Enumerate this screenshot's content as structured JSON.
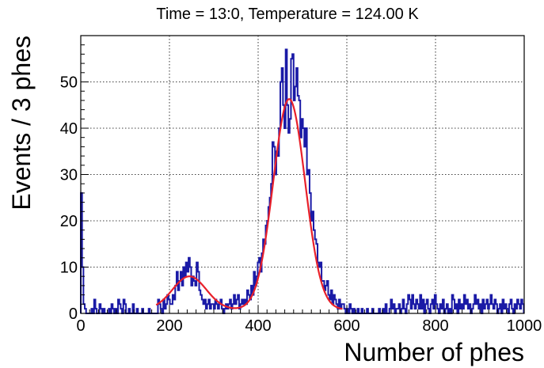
{
  "chart_data": {
    "type": "histogram",
    "title": "Time = 13:0, Temperature = 124.00 K",
    "xlabel": "Number of phes",
    "ylabel": "Events / 3 phes",
    "xlim": [
      0,
      1000
    ],
    "ylim": [
      0,
      60
    ],
    "x_ticks": [
      0,
      200,
      400,
      600,
      800,
      1000
    ],
    "x_tick_labels": [
      "0",
      "200",
      "400",
      "600",
      "800",
      "1000"
    ],
    "y_ticks": [
      0,
      10,
      20,
      30,
      40,
      50
    ],
    "y_tick_labels": [
      "0",
      "10",
      "20",
      "30",
      "40",
      "50"
    ],
    "grid": true,
    "bin_width": 3,
    "histogram": {
      "name": "",
      "color": "#1a1aa6",
      "bins": [
        [
          0,
          26
        ],
        [
          3,
          10
        ],
        [
          6,
          2
        ],
        [
          9,
          1
        ],
        [
          12,
          0
        ],
        [
          15,
          0
        ],
        [
          18,
          0
        ],
        [
          21,
          0
        ],
        [
          24,
          1
        ],
        [
          27,
          0
        ],
        [
          30,
          3
        ],
        [
          33,
          1
        ],
        [
          36,
          0
        ],
        [
          39,
          0
        ],
        [
          42,
          2
        ],
        [
          45,
          1
        ],
        [
          48,
          0
        ],
        [
          51,
          1
        ],
        [
          54,
          0
        ],
        [
          57,
          0
        ],
        [
          60,
          0
        ],
        [
          63,
          1
        ],
        [
          66,
          0
        ],
        [
          69,
          2
        ],
        [
          72,
          1
        ],
        [
          75,
          0
        ],
        [
          78,
          1
        ],
        [
          81,
          0
        ],
        [
          84,
          3
        ],
        [
          87,
          2
        ],
        [
          90,
          1
        ],
        [
          93,
          0
        ],
        [
          96,
          3
        ],
        [
          99,
          2
        ],
        [
          102,
          0
        ],
        [
          105,
          0
        ],
        [
          108,
          1
        ],
        [
          111,
          0
        ],
        [
          114,
          0
        ],
        [
          117,
          2
        ],
        [
          120,
          0
        ],
        [
          123,
          0
        ],
        [
          126,
          1
        ],
        [
          129,
          0
        ],
        [
          132,
          0
        ],
        [
          135,
          0
        ],
        [
          138,
          1
        ],
        [
          141,
          0
        ],
        [
          144,
          0
        ],
        [
          147,
          0
        ],
        [
          150,
          0
        ],
        [
          153,
          1
        ],
        [
          156,
          0
        ],
        [
          159,
          0
        ],
        [
          162,
          0
        ],
        [
          165,
          0
        ],
        [
          168,
          0
        ],
        [
          171,
          0
        ],
        [
          174,
          3
        ],
        [
          177,
          2
        ],
        [
          180,
          1
        ],
        [
          183,
          0
        ],
        [
          186,
          3
        ],
        [
          189,
          1
        ],
        [
          192,
          2
        ],
        [
          195,
          4
        ],
        [
          198,
          3
        ],
        [
          201,
          2
        ],
        [
          204,
          2
        ],
        [
          207,
          4
        ],
        [
          210,
          3
        ],
        [
          213,
          6
        ],
        [
          216,
          9
        ],
        [
          219,
          5
        ],
        [
          222,
          7
        ],
        [
          225,
          9
        ],
        [
          228,
          6
        ],
        [
          231,
          10
        ],
        [
          234,
          8
        ],
        [
          237,
          11
        ],
        [
          240,
          9
        ],
        [
          243,
          12
        ],
        [
          246,
          10
        ],
        [
          249,
          6
        ],
        [
          252,
          8
        ],
        [
          255,
          7
        ],
        [
          258,
          6
        ],
        [
          261,
          11
        ],
        [
          264,
          9
        ],
        [
          267,
          5
        ],
        [
          270,
          4
        ],
        [
          273,
          3
        ],
        [
          276,
          2
        ],
        [
          279,
          3
        ],
        [
          282,
          1
        ],
        [
          285,
          2
        ],
        [
          288,
          3
        ],
        [
          291,
          1
        ],
        [
          294,
          2
        ],
        [
          297,
          2
        ],
        [
          300,
          1
        ],
        [
          303,
          3
        ],
        [
          306,
          2
        ],
        [
          309,
          1
        ],
        [
          312,
          2
        ],
        [
          315,
          3
        ],
        [
          318,
          1
        ],
        [
          321,
          0
        ],
        [
          324,
          1
        ],
        [
          327,
          2
        ],
        [
          330,
          1
        ],
        [
          333,
          2
        ],
        [
          336,
          3
        ],
        [
          339,
          1
        ],
        [
          342,
          2
        ],
        [
          345,
          4
        ],
        [
          348,
          2
        ],
        [
          351,
          3
        ],
        [
          354,
          4
        ],
        [
          357,
          1
        ],
        [
          360,
          2
        ],
        [
          363,
          3
        ],
        [
          366,
          2
        ],
        [
          369,
          3
        ],
        [
          372,
          2
        ],
        [
          375,
          5
        ],
        [
          378,
          4
        ],
        [
          381,
          3
        ],
        [
          384,
          6
        ],
        [
          387,
          4
        ],
        [
          390,
          9
        ],
        [
          393,
          6
        ],
        [
          396,
          8
        ],
        [
          399,
          11
        ],
        [
          402,
          12
        ],
        [
          405,
          9
        ],
        [
          408,
          13
        ],
        [
          411,
          16
        ],
        [
          414,
          15
        ],
        [
          417,
          19
        ],
        [
          420,
          20
        ],
        [
          423,
          23
        ],
        [
          426,
          25
        ],
        [
          429,
          28
        ],
        [
          432,
          37
        ],
        [
          435,
          36
        ],
        [
          438,
          30
        ],
        [
          441,
          35
        ],
        [
          444,
          34
        ],
        [
          447,
          40
        ],
        [
          450,
          50
        ],
        [
          453,
          53
        ],
        [
          456,
          45
        ],
        [
          459,
          40
        ],
        [
          462,
          57
        ],
        [
          465,
          45
        ],
        [
          468,
          39
        ],
        [
          471,
          42
        ],
        [
          474,
          55
        ],
        [
          477,
          56
        ],
        [
          480,
          46
        ],
        [
          483,
          49
        ],
        [
          486,
          53
        ],
        [
          489,
          47
        ],
        [
          492,
          46
        ],
        [
          495,
          38
        ],
        [
          498,
          42
        ],
        [
          501,
          40
        ],
        [
          504,
          36
        ],
        [
          507,
          40
        ],
        [
          510,
          30
        ],
        [
          513,
          31
        ],
        [
          516,
          26
        ],
        [
          519,
          20
        ],
        [
          522,
          22
        ],
        [
          525,
          18
        ],
        [
          528,
          16
        ],
        [
          531,
          15
        ],
        [
          534,
          11
        ],
        [
          537,
          10
        ],
        [
          540,
          11
        ],
        [
          543,
          7
        ],
        [
          546,
          7
        ],
        [
          549,
          5
        ],
        [
          552,
          6
        ],
        [
          555,
          7
        ],
        [
          558,
          4
        ],
        [
          561,
          3
        ],
        [
          564,
          5
        ],
        [
          567,
          2
        ],
        [
          570,
          4
        ],
        [
          573,
          3
        ],
        [
          576,
          2
        ],
        [
          579,
          1
        ],
        [
          582,
          3
        ],
        [
          585,
          1
        ],
        [
          588,
          2
        ],
        [
          591,
          2
        ],
        [
          594,
          1
        ],
        [
          597,
          0
        ],
        [
          600,
          1
        ],
        [
          603,
          0
        ],
        [
          606,
          2
        ],
        [
          609,
          1
        ],
        [
          612,
          0
        ],
        [
          615,
          1
        ],
        [
          618,
          0
        ],
        [
          621,
          0
        ],
        [
          624,
          1
        ],
        [
          627,
          0
        ],
        [
          630,
          0
        ],
        [
          633,
          1
        ],
        [
          636,
          0
        ],
        [
          639,
          0
        ],
        [
          642,
          0
        ],
        [
          645,
          1
        ],
        [
          648,
          0
        ],
        [
          651,
          0
        ],
        [
          654,
          0
        ],
        [
          657,
          1
        ],
        [
          660,
          0
        ],
        [
          663,
          0
        ],
        [
          666,
          0
        ],
        [
          669,
          0
        ],
        [
          672,
          1
        ],
        [
          675,
          0
        ],
        [
          678,
          0
        ],
        [
          681,
          1
        ],
        [
          684,
          0
        ],
        [
          687,
          2
        ],
        [
          690,
          0
        ],
        [
          693,
          0
        ],
        [
          696,
          1
        ],
        [
          699,
          3
        ],
        [
          702,
          1
        ],
        [
          705,
          2
        ],
        [
          708,
          0
        ],
        [
          711,
          1
        ],
        [
          714,
          1
        ],
        [
          717,
          2
        ],
        [
          720,
          0
        ],
        [
          723,
          1
        ],
        [
          726,
          3
        ],
        [
          729,
          1
        ],
        [
          732,
          0
        ],
        [
          735,
          2
        ],
        [
          738,
          4
        ],
        [
          741,
          3
        ],
        [
          744,
          1
        ],
        [
          747,
          4
        ],
        [
          750,
          2
        ],
        [
          753,
          1
        ],
        [
          756,
          3
        ],
        [
          759,
          2
        ],
        [
          762,
          1
        ],
        [
          765,
          4
        ],
        [
          768,
          1
        ],
        [
          771,
          3
        ],
        [
          774,
          0
        ],
        [
          777,
          2
        ],
        [
          780,
          3
        ],
        [
          783,
          1
        ],
        [
          786,
          0
        ],
        [
          789,
          2
        ],
        [
          792,
          3
        ],
        [
          795,
          1
        ],
        [
          798,
          4
        ],
        [
          801,
          2
        ],
        [
          804,
          1
        ],
        [
          807,
          0
        ],
        [
          810,
          2
        ],
        [
          813,
          1
        ],
        [
          816,
          3
        ],
        [
          819,
          0
        ],
        [
          822,
          1
        ],
        [
          825,
          2
        ],
        [
          828,
          0
        ],
        [
          831,
          1
        ],
        [
          834,
          0
        ],
        [
          837,
          4
        ],
        [
          840,
          3
        ],
        [
          843,
          1
        ],
        [
          846,
          2
        ],
        [
          849,
          0
        ],
        [
          852,
          3
        ],
        [
          855,
          1
        ],
        [
          858,
          2
        ],
        [
          861,
          1
        ],
        [
          864,
          4
        ],
        [
          867,
          2
        ],
        [
          870,
          3
        ],
        [
          873,
          1
        ],
        [
          876,
          2
        ],
        [
          879,
          0
        ],
        [
          882,
          1
        ],
        [
          885,
          2
        ],
        [
          888,
          4
        ],
        [
          891,
          2
        ],
        [
          894,
          3
        ],
        [
          897,
          1
        ],
        [
          900,
          2
        ],
        [
          903,
          0
        ],
        [
          906,
          3
        ],
        [
          909,
          1
        ],
        [
          912,
          2
        ],
        [
          915,
          3
        ],
        [
          918,
          1
        ],
        [
          921,
          2
        ],
        [
          924,
          4
        ],
        [
          927,
          2
        ],
        [
          930,
          1
        ],
        [
          933,
          3
        ],
        [
          936,
          2
        ],
        [
          939,
          0
        ],
        [
          942,
          1
        ],
        [
          945,
          2
        ],
        [
          948,
          0
        ],
        [
          951,
          3
        ],
        [
          954,
          1
        ],
        [
          957,
          2
        ],
        [
          960,
          1
        ],
        [
          963,
          0
        ],
        [
          966,
          2
        ],
        [
          969,
          3
        ],
        [
          972,
          1
        ],
        [
          975,
          0
        ],
        [
          978,
          2
        ],
        [
          981,
          1
        ],
        [
          984,
          3
        ],
        [
          987,
          2
        ],
        [
          990,
          1
        ],
        [
          993,
          3
        ],
        [
          996,
          2
        ]
      ]
    },
    "fit": {
      "name": "",
      "color": "#e8202a",
      "x_range": [
        170,
        590
      ],
      "components": [
        {
          "amplitude": 7.2,
          "mean": 245,
          "sigma": 38
        },
        {
          "amplitude": 45.5,
          "mean": 470,
          "sigma": 36
        }
      ],
      "baseline": 0.8
    }
  }
}
